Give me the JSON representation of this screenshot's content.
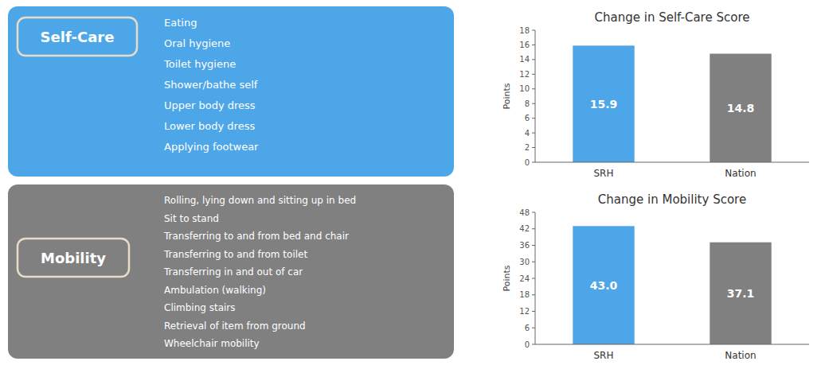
{
  "chart_data": [
    {
      "type": "bar",
      "title": "Change in Self-Care Score",
      "ylabel": "Points",
      "categories": [
        "SRH",
        "Nation"
      ],
      "values": [
        15.9,
        14.8
      ],
      "colors": [
        "#4da6e8",
        "#808080"
      ],
      "ylim": [
        0,
        18
      ],
      "yticks": [
        0,
        2,
        4,
        6,
        8,
        10,
        12,
        14,
        16,
        18
      ],
      "grid": false,
      "data_labels": true,
      "annotations": [
        "Self-Care",
        "Eating",
        "Oral hygiene",
        "Toilet hygiene",
        "Shower/bathe self",
        "Upper body dress",
        "Lower body dress",
        "Applying footwear"
      ]
    },
    {
      "type": "bar",
      "title": "Change in Mobility Score",
      "ylabel": "Points",
      "categories": [
        "SRH",
        "Nation"
      ],
      "values": [
        43.0,
        37.1
      ],
      "value_labels": [
        "43.0",
        "37.1"
      ],
      "colors": [
        "#4da6e8",
        "#808080"
      ],
      "ylim": [
        0,
        48
      ],
      "yticks": [
        0,
        6,
        12,
        18,
        24,
        30,
        36,
        42,
        48
      ],
      "grid": false,
      "data_labels": true,
      "annotations": [
        "Mobility",
        "Rolling, lying down and sitting up in bed",
        "Sit to stand",
        "Transferring to and from bed and chair",
        "Transferring to and from toilet",
        "Transferring in and out of car",
        "Ambulation (walking)",
        "Climbing stairs",
        "Retrieval of item from ground",
        "Wheelchair mobility"
      ]
    }
  ]
}
